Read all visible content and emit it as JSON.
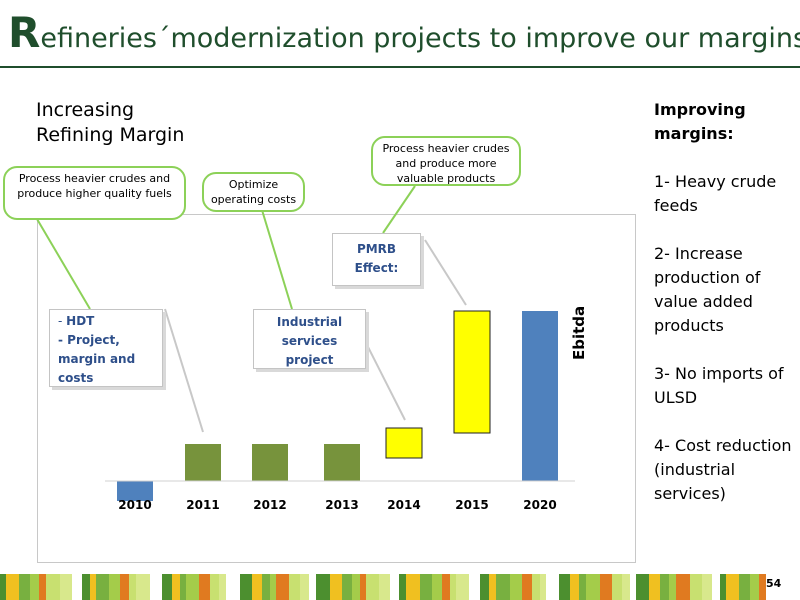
{
  "title": {
    "cap": "R",
    "rest": "efineries´modernization projects to improve our margins"
  },
  "subtitle": [
    "Increasing",
    "Refining Margin"
  ],
  "callouts": {
    "c1": "Process heavier crudes and produce higher quality fuels",
    "c2": "Optimize operating costs",
    "c3": "Process heavier crudes and produce more valuable products"
  },
  "boxes": {
    "hdt_dash": "- ",
    "hdt_line1": "HDT",
    "hdt_line2": "- Project, margin and costs",
    "industrial": "Industrial services project",
    "pmrb": "PMRB Effect:"
  },
  "ylabel": "Ebitda",
  "side": {
    "heading": "Improving margins:",
    "items": [
      "1- Heavy crude feeds",
      "2- Increase production of value added products",
      "3- No imports of ULSD",
      "4- Cost reduction (industrial services)"
    ]
  },
  "page_number": "54",
  "colors": {
    "blue": "#4f81bd",
    "green": "#77933c",
    "yellow": "#ffff00",
    "callout_border": "#8cd158",
    "title": "#1f4e2c"
  },
  "chart_data": {
    "type": "bar",
    "subtype": "waterfall",
    "categories": [
      "2010",
      "2011",
      "2012",
      "2013",
      "2014",
      "2015",
      "2020"
    ],
    "bars": [
      {
        "category": "2010",
        "start": 0,
        "end": -20,
        "color": "blue"
      },
      {
        "category": "2011",
        "start": 0,
        "end": 37,
        "color": "green"
      },
      {
        "category": "2012",
        "start": 0,
        "end": 37,
        "color": "green"
      },
      {
        "category": "2013",
        "start": 0,
        "end": 37,
        "color": "green"
      },
      {
        "category": "2014",
        "start": 23,
        "end": 53,
        "color": "yellow"
      },
      {
        "category": "2015",
        "start": 48,
        "end": 170,
        "color": "yellow"
      },
      {
        "category": "2020",
        "start": 0,
        "end": 170,
        "color": "blue"
      }
    ],
    "ylabel": "Ebitda",
    "ylim": [
      -25,
      175
    ],
    "grid": false,
    "legend": "none"
  }
}
